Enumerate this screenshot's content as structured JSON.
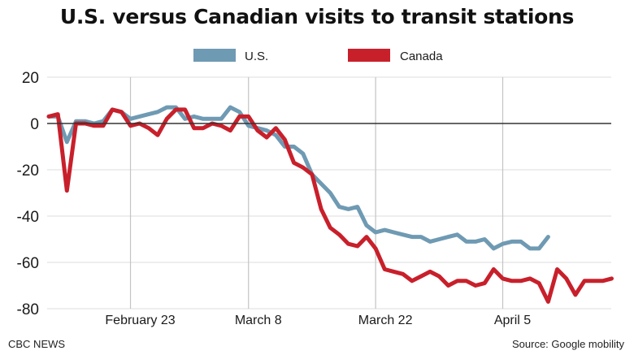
{
  "title": "U.S. versus Canadian visits to transit stations",
  "source": "Source: Google mobility",
  "credit": "CBC NEWS",
  "chart_data": {
    "type": "line",
    "title": "U.S. versus Canadian visits to transit stations",
    "xlabel": "",
    "ylabel": "",
    "ylim": [
      -80,
      20
    ],
    "yticks": [
      20,
      0,
      -20,
      -40,
      -60,
      -80
    ],
    "xticks": [
      {
        "day": 9,
        "label": "February 23"
      },
      {
        "day": 22,
        "label": "March 8"
      },
      {
        "day": 36,
        "label": "March 22"
      },
      {
        "day": 50,
        "label": "April 5"
      }
    ],
    "xlim": [
      0,
      61
    ],
    "grid": true,
    "legend": "top-center",
    "series": [
      {
        "name": "U.S.",
        "color": "#6f9ab3",
        "start_day": 0,
        "values": [
          3,
          3,
          -8,
          1,
          1,
          0,
          1,
          6,
          5,
          2,
          3,
          4,
          5,
          7,
          7,
          2,
          3,
          2,
          2,
          2,
          7,
          5,
          -1,
          -2,
          -3,
          -5,
          -10,
          -10,
          -13,
          -22,
          -26,
          -30,
          -36,
          -37,
          -36,
          -44,
          -47,
          -46,
          -47,
          -48,
          -49,
          -49,
          -51,
          -50,
          -49,
          -48,
          -51,
          -51,
          -50,
          -54,
          -52,
          -51,
          -51,
          -54,
          -54,
          -49
        ]
      },
      {
        "name": "Canada",
        "color": "#c8202b",
        "start_day": 0,
        "values": [
          3,
          4,
          -29,
          0,
          0,
          -1,
          -1,
          6,
          5,
          -1,
          0,
          -2,
          -5,
          2,
          6,
          6,
          -2,
          -2,
          0,
          -1,
          -3,
          3,
          3,
          -3,
          -6,
          -2,
          -7,
          -17,
          -19,
          -22,
          -37,
          -45,
          -48,
          -52,
          -53,
          -49,
          -54,
          -63,
          -64,
          -65,
          -68,
          -66,
          -64,
          -66,
          -70,
          -68,
          -68,
          -70,
          -69,
          -63,
          -67,
          -68,
          -68,
          -67,
          -69,
          -77,
          -63,
          -67,
          -74,
          -68,
          -68,
          -68,
          -67
        ]
      }
    ]
  }
}
